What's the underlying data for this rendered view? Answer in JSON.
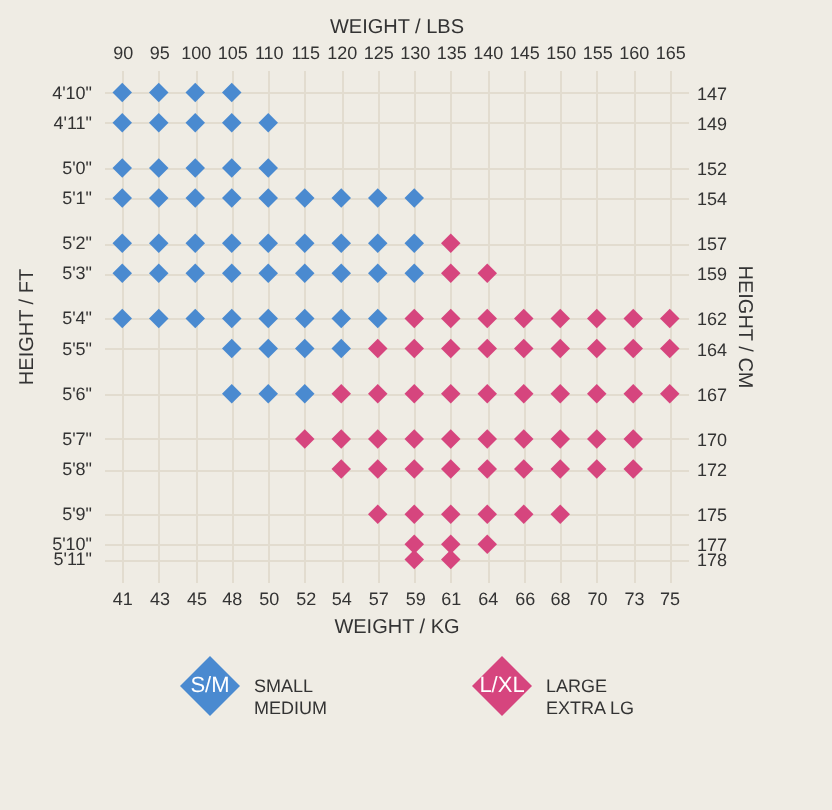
{
  "chart_data": {
    "type": "scatter",
    "xlabel": "WEIGHT / LBS",
    "x2label": "WEIGHT / KG",
    "ylabel": "HEIGHT / CM",
    "y2label": "HEIGHT / FT",
    "xlim": [
      87.5,
      167.5
    ],
    "xticks": [
      90,
      95,
      100,
      105,
      110,
      115,
      120,
      125,
      130,
      135,
      140,
      145,
      150,
      155,
      160,
      165
    ],
    "x2lim": [
      39.69,
      75.98
    ],
    "x2ticks": [
      {
        "value": 40.8,
        "label": "41"
      },
      {
        "value": 43.1,
        "label": "43"
      },
      {
        "value": 45.4,
        "label": "45"
      },
      {
        "value": 47.6,
        "label": "48"
      },
      {
        "value": 49.9,
        "label": "50"
      },
      {
        "value": 52.2,
        "label": "52"
      },
      {
        "value": 54.4,
        "label": "54"
      },
      {
        "value": 56.7,
        "label": "57"
      },
      {
        "value": 59.0,
        "label": "59"
      },
      {
        "value": 61.2,
        "label": "61"
      },
      {
        "value": 63.5,
        "label": "64"
      },
      {
        "value": 65.8,
        "label": "66"
      },
      {
        "value": 68.0,
        "label": "68"
      },
      {
        "value": 70.3,
        "label": "70"
      },
      {
        "value": 72.6,
        "label": "73"
      },
      {
        "value": 74.8,
        "label": "75"
      }
    ],
    "ylim": [
      179.5,
      145.5
    ],
    "yticks": [
      147,
      149,
      152,
      154,
      157,
      159,
      162,
      164,
      167,
      170,
      172,
      175,
      177,
      178
    ],
    "marker": "diamond",
    "grid": true,
    "legend": "bottom",
    "annotations": [
      "4'10\"",
      "4'11\"",
      "5'0\"",
      "5'1\"",
      "5'2\"",
      "5'3\"",
      "5'4\"",
      "5'5\"",
      "5'6\"",
      "5'7\"",
      "5'8\"",
      "5'9\"",
      "5'10\"",
      "5'11\"",
      "SMALL\nMEDIUM",
      "LARGE\nEXTRA LG"
    ],
    "series": [
      {
        "name": "S/M",
        "color": "#4a8ad0",
        "x": [
          90,
          95,
          100,
          105,
          90,
          95,
          100,
          105,
          110,
          90,
          95,
          100,
          105,
          110,
          90,
          95,
          100,
          105,
          110,
          115,
          120,
          125,
          130,
          90,
          95,
          100,
          105,
          110,
          115,
          120,
          125,
          130,
          90,
          95,
          100,
          105,
          110,
          115,
          120,
          125,
          130,
          90,
          95,
          100,
          105,
          110,
          115,
          120,
          125,
          105,
          110,
          115,
          120,
          105,
          110,
          115
        ],
        "values": [
          147,
          147,
          147,
          147,
          149,
          149,
          149,
          149,
          149,
          152,
          152,
          152,
          152,
          152,
          154,
          154,
          154,
          154,
          154,
          154,
          154,
          154,
          154,
          157,
          157,
          157,
          157,
          157,
          157,
          157,
          157,
          157,
          159,
          159,
          159,
          159,
          159,
          159,
          159,
          159,
          159,
          162,
          162,
          162,
          162,
          162,
          162,
          162,
          162,
          164,
          164,
          164,
          164,
          167,
          167,
          167
        ]
      },
      {
        "name": "L/XL",
        "color": "#d6457e",
        "x": [
          135,
          135,
          140,
          130,
          135,
          140,
          145,
          150,
          155,
          160,
          165,
          125,
          130,
          135,
          140,
          145,
          150,
          155,
          160,
          165,
          120,
          125,
          130,
          135,
          140,
          145,
          150,
          155,
          160,
          165,
          115,
          120,
          125,
          130,
          135,
          140,
          145,
          150,
          155,
          160,
          120,
          125,
          130,
          135,
          140,
          145,
          150,
          155,
          160,
          125,
          130,
          135,
          140,
          145,
          150,
          130,
          135,
          140,
          130,
          135
        ],
        "values": [
          157,
          159,
          159,
          162,
          162,
          162,
          162,
          162,
          162,
          162,
          162,
          164,
          164,
          164,
          164,
          164,
          164,
          164,
          164,
          164,
          167,
          167,
          167,
          167,
          167,
          167,
          167,
          167,
          167,
          167,
          170,
          170,
          170,
          170,
          170,
          170,
          170,
          170,
          170,
          170,
          172,
          172,
          172,
          172,
          172,
          172,
          172,
          172,
          172,
          175,
          175,
          175,
          175,
          175,
          175,
          177,
          177,
          177,
          178,
          178
        ]
      }
    ]
  }
}
